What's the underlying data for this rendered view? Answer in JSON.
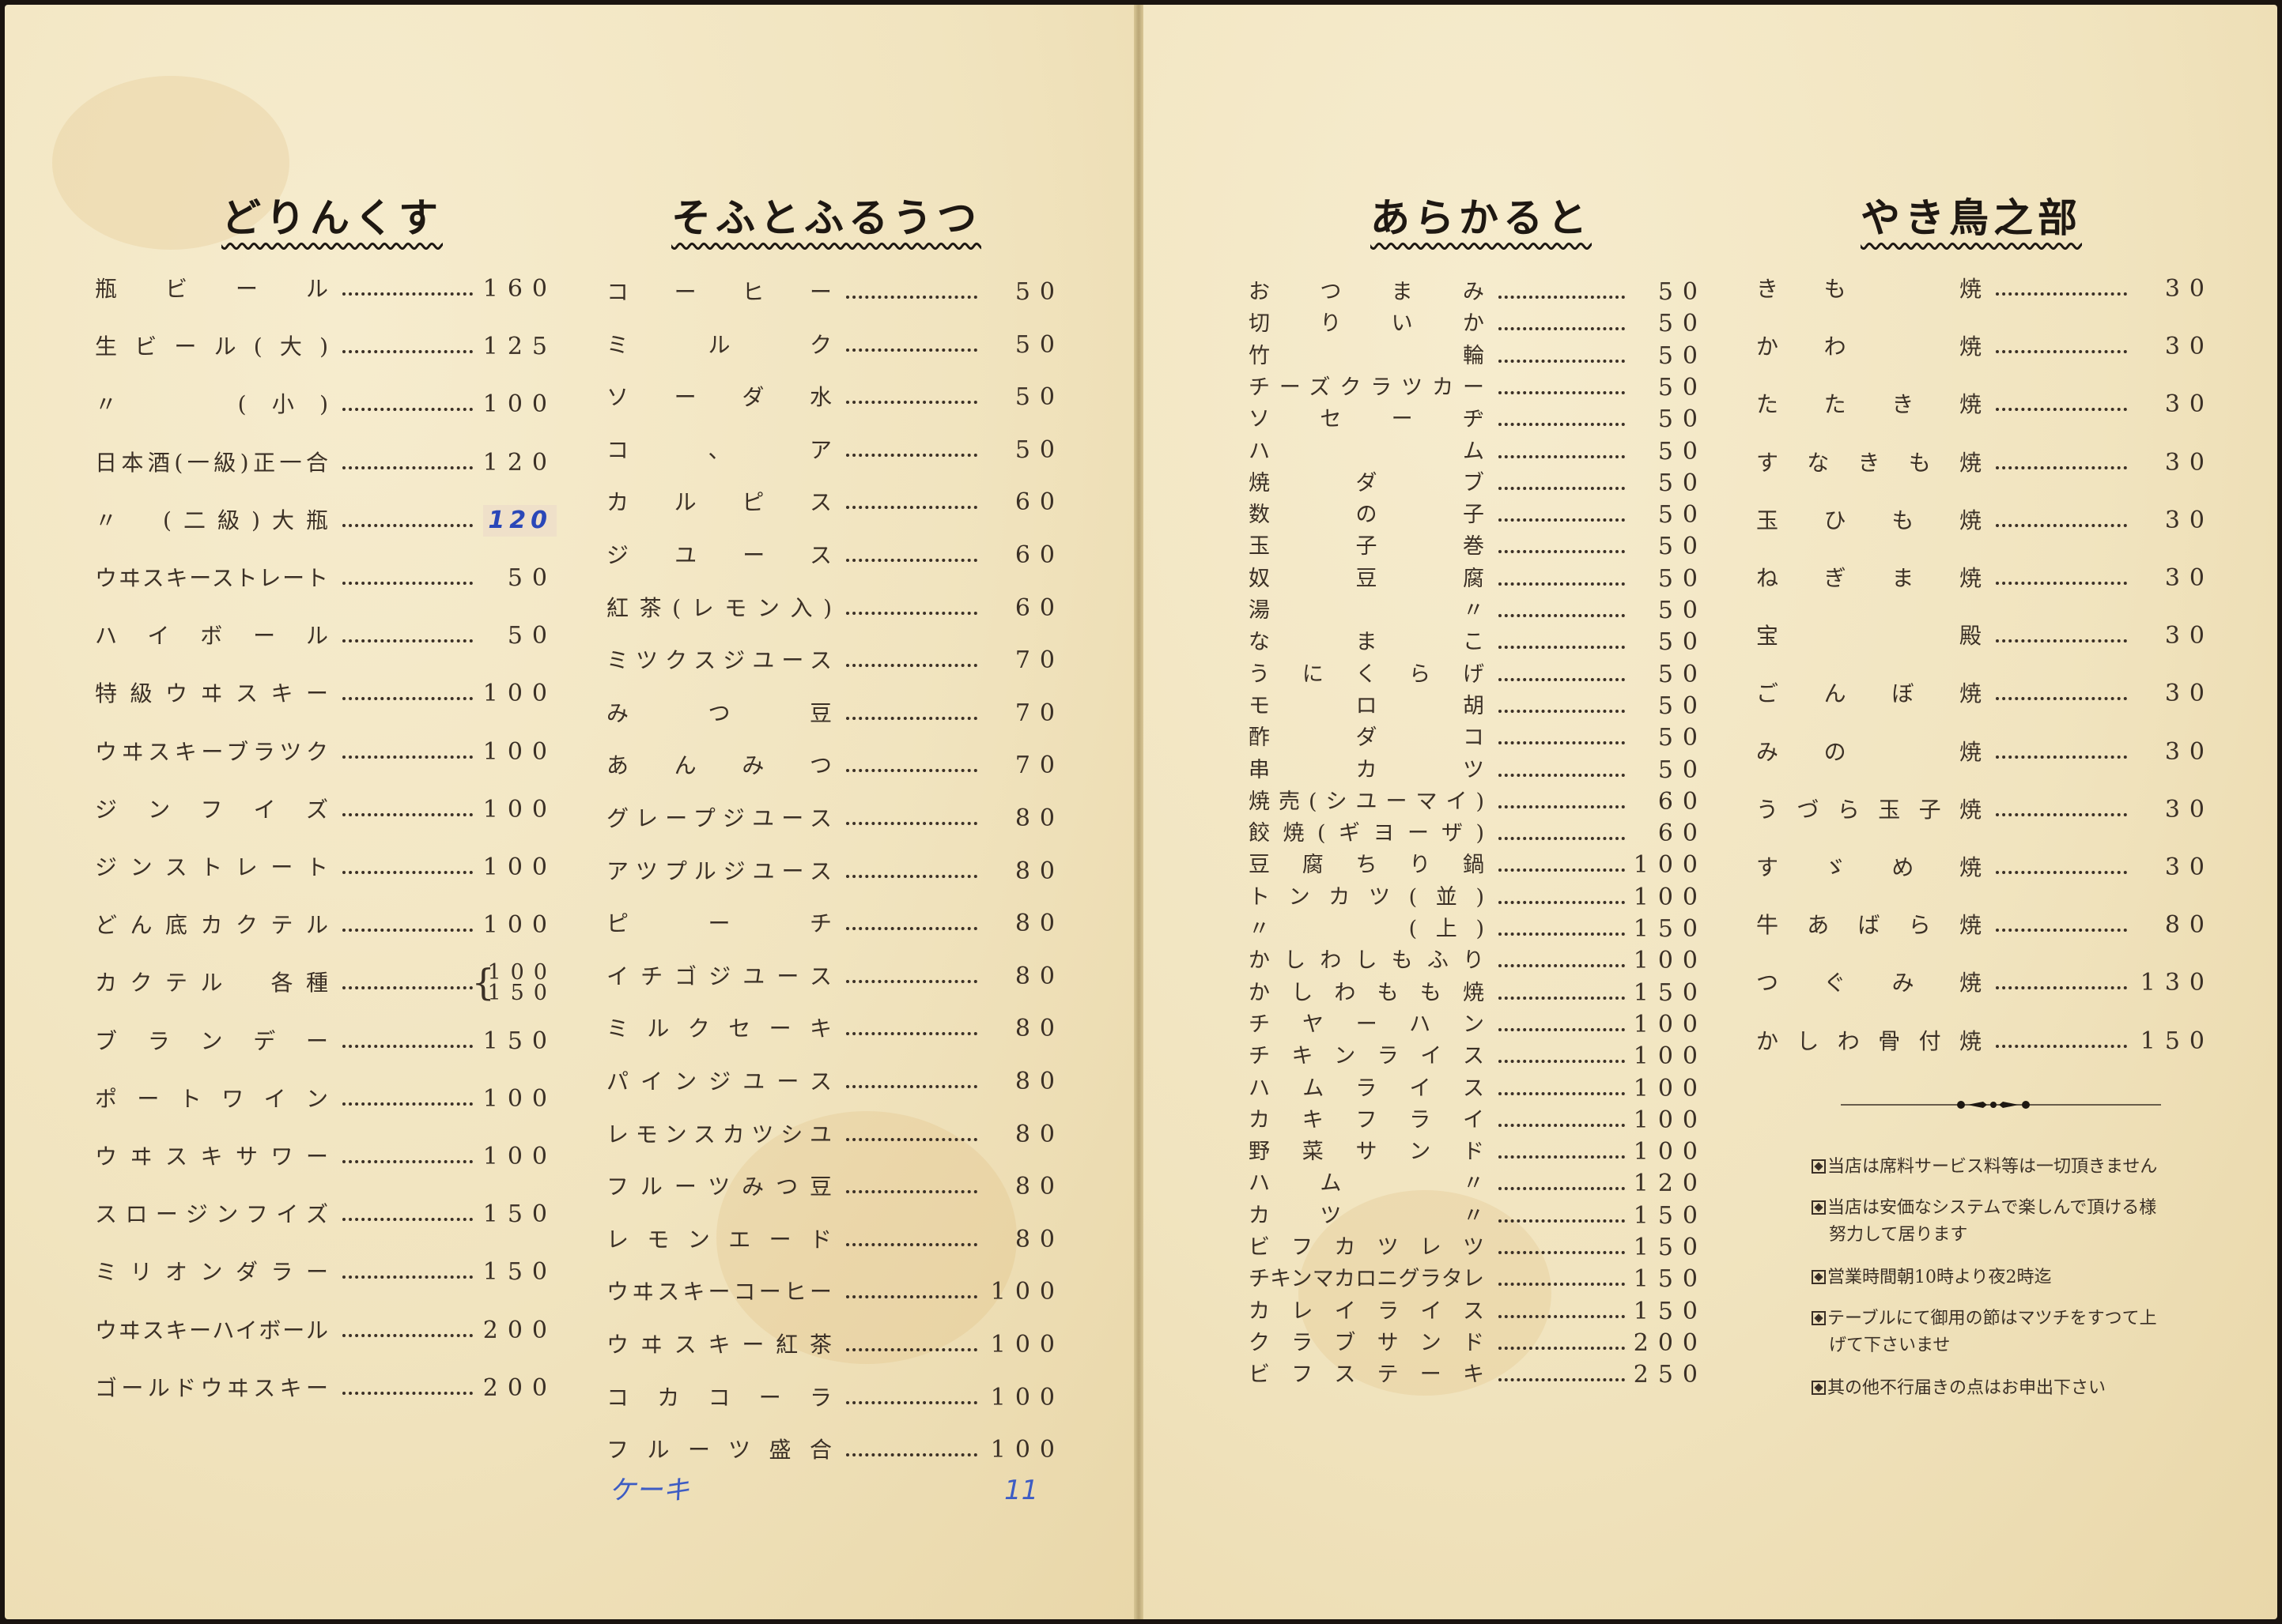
{
  "colors": {
    "paper": "#f1e4bf",
    "ink": "#3b3026",
    "handwriting": "#2a47b8"
  },
  "sections": [
    {
      "title": "どりんくす",
      "items": [
        {
          "name": "瓶ビール",
          "price": "160"
        },
        {
          "name": "生ビール(大)",
          "price": "125"
        },
        {
          "name": "〃　　(小)",
          "price": "100"
        },
        {
          "name": "日本酒(一級)正一合",
          "price": "120"
        },
        {
          "name": "〃　(二級)大瓶",
          "price": "120",
          "handwritten": true
        },
        {
          "name": "ウヰスキーストレート",
          "price": "50"
        },
        {
          "name": "ハイボール",
          "price": "50"
        },
        {
          "name": "特級ウヰスキー",
          "price": "100"
        },
        {
          "name": "ウヰスキーブラツク",
          "price": "100"
        },
        {
          "name": "ジンフイズ",
          "price": "100"
        },
        {
          "name": "ジンストレート",
          "price": "100"
        },
        {
          "name": "どん底カクテル",
          "price": "100"
        },
        {
          "name": "カクテル　各種",
          "price": [
            "100",
            "150"
          ]
        },
        {
          "name": "ブランデー",
          "price": "150"
        },
        {
          "name": "ポートワイン",
          "price": "100"
        },
        {
          "name": "ウヰスキサワー",
          "price": "100"
        },
        {
          "name": "スロージンフイズ",
          "price": "150"
        },
        {
          "name": "ミリオンダラー",
          "price": "150"
        },
        {
          "name": "ウヰスキーハイボール",
          "price": "200"
        },
        {
          "name": "ゴールドウヰスキー",
          "price": "200"
        }
      ]
    },
    {
      "title": "そふとふるうつ",
      "items": [
        {
          "name": "コーヒー",
          "price": "50"
        },
        {
          "name": "ミルク",
          "price": "50"
        },
        {
          "name": "ソーダ水",
          "price": "50"
        },
        {
          "name": "コ、ア",
          "price": "50"
        },
        {
          "name": "カルピス",
          "price": "60"
        },
        {
          "name": "ジユース",
          "price": "60"
        },
        {
          "name": "紅茶(レモン入)",
          "price": "60"
        },
        {
          "name": "ミツクスジユース",
          "price": "70"
        },
        {
          "name": "みつ豆",
          "price": "70"
        },
        {
          "name": "あんみつ",
          "price": "70"
        },
        {
          "name": "グレープジユース",
          "price": "80"
        },
        {
          "name": "アツプルジユース",
          "price": "80"
        },
        {
          "name": "ピーチ",
          "price": "80"
        },
        {
          "name": "イチゴジユース",
          "price": "80"
        },
        {
          "name": "ミルクセーキ",
          "price": "80"
        },
        {
          "name": "パインジユース",
          "price": "80"
        },
        {
          "name": "レモンスカツシユ",
          "price": "80"
        },
        {
          "name": "フルーツみつ豆",
          "price": "80"
        },
        {
          "name": "レモンエード",
          "price": "80"
        },
        {
          "name": "ウヰスキーコーヒー",
          "price": "100"
        },
        {
          "name": "ウヰスキー紅茶",
          "price": "100"
        },
        {
          "name": "コカコーラ",
          "price": "100"
        },
        {
          "name": "フルーツ盛合",
          "price": "100"
        }
      ],
      "handwritten_note": {
        "name": "ケーキ",
        "price": "11"
      }
    },
    {
      "title": "あらかると",
      "items": [
        {
          "name": "おつまみ",
          "price": "50"
        },
        {
          "name": "切りいか",
          "price": "50"
        },
        {
          "name": "竹　　輪",
          "price": "50"
        },
        {
          "name": "チーズクラツカー",
          "price": "50"
        },
        {
          "name": "ソセーヂ",
          "price": "50"
        },
        {
          "name": "ハ　　ム",
          "price": "50"
        },
        {
          "name": "焼ダブ",
          "price": "50"
        },
        {
          "name": "数の子",
          "price": "50"
        },
        {
          "name": "玉子巻",
          "price": "50"
        },
        {
          "name": "奴豆腐",
          "price": "50"
        },
        {
          "name": "湯　〃　",
          "price": "50"
        },
        {
          "name": "なまこ",
          "price": "50"
        },
        {
          "name": "うにくらげ",
          "price": "50"
        },
        {
          "name": "モロ胡",
          "price": "50"
        },
        {
          "name": "酢ダコ",
          "price": "50"
        },
        {
          "name": "串カツ",
          "price": "50"
        },
        {
          "name": "焼売(シユーマイ)",
          "price": "60"
        },
        {
          "name": "餃焼(ギヨーザ)",
          "price": "60"
        },
        {
          "name": "豆腐ちり鍋",
          "price": "100"
        },
        {
          "name": "トンカツ(並)",
          "price": "100"
        },
        {
          "name": "〃　　　(上)",
          "price": "150"
        },
        {
          "name": "かしわしもふり",
          "price": "100"
        },
        {
          "name": "かしわもも焼",
          "price": "150"
        },
        {
          "name": "チヤーハン",
          "price": "100"
        },
        {
          "name": "チキンライス",
          "price": "100"
        },
        {
          "name": "ハムライス",
          "price": "100"
        },
        {
          "name": "カキフライ",
          "price": "100"
        },
        {
          "name": "野菜サンド",
          "price": "100"
        },
        {
          "name": "ハム　〃　",
          "price": "120"
        },
        {
          "name": "カツ　〃　",
          "price": "150"
        },
        {
          "name": "ビフカツレツ",
          "price": "150"
        },
        {
          "name": "チキンマカロニグラタレ",
          "price": "150"
        },
        {
          "name": "カレイライス",
          "price": "150"
        },
        {
          "name": "クラブサンド",
          "price": "200"
        },
        {
          "name": "ビフステーキ",
          "price": "250"
        }
      ]
    },
    {
      "title": "やき鳥之部",
      "items": [
        {
          "name": "きも　焼",
          "price": "30"
        },
        {
          "name": "かわ　焼",
          "price": "30"
        },
        {
          "name": "たたき焼",
          "price": "30"
        },
        {
          "name": "すなきも焼",
          "price": "30"
        },
        {
          "name": "玉ひも焼",
          "price": "30"
        },
        {
          "name": "ねぎま焼",
          "price": "30"
        },
        {
          "name": "宝　　殿",
          "price": "30"
        },
        {
          "name": "ごんぼ焼",
          "price": "30"
        },
        {
          "name": "みの　焼",
          "price": "30"
        },
        {
          "name": "うづら玉子焼",
          "price": "30"
        },
        {
          "name": "すゞめ焼",
          "price": "30"
        },
        {
          "name": "牛あばら焼",
          "price": "80"
        },
        {
          "name": "つぐみ焼",
          "price": "130"
        },
        {
          "name": "かしわ骨付焼",
          "price": "150"
        }
      ],
      "notes": [
        [
          "当店は席料サービス料等は一切頂きません"
        ],
        [
          "当店は安価なシステムで楽しんで頂ける様",
          "努力して居ります"
        ],
        [
          "営業時間朝10時より夜2時迄"
        ],
        [
          "テーブルにて御用の節はマツチをすつて上",
          "げて下さいませ"
        ],
        [
          "其の他不行届きの点はお申出下さい"
        ]
      ]
    }
  ]
}
